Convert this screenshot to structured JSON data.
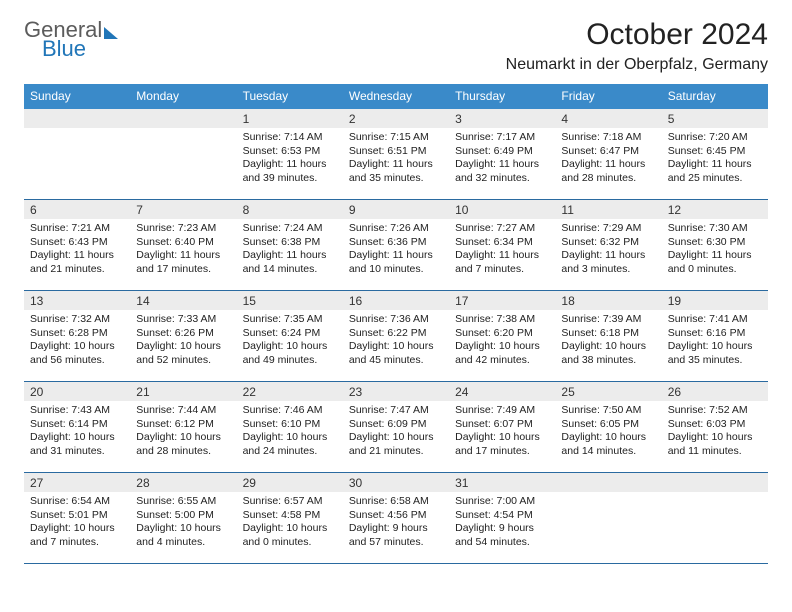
{
  "brand": {
    "line1": "General",
    "line2": "Blue"
  },
  "title": "October 2024",
  "location": "Neumarkt in der Oberpfalz, Germany",
  "colors": {
    "header_bg": "#3a8ac9",
    "header_text": "#ffffff",
    "week_border": "#2a6aa0",
    "daynum_bg": "#ececec",
    "brand_blue": "#2176b8",
    "brand_gray": "#5c5c5c"
  },
  "days_of_week": [
    "Sunday",
    "Monday",
    "Tuesday",
    "Wednesday",
    "Thursday",
    "Friday",
    "Saturday"
  ],
  "weeks": [
    [
      {
        "n": "",
        "sunrise": "",
        "sunset": "",
        "daylight": ""
      },
      {
        "n": "",
        "sunrise": "",
        "sunset": "",
        "daylight": ""
      },
      {
        "n": "1",
        "sunrise": "Sunrise: 7:14 AM",
        "sunset": "Sunset: 6:53 PM",
        "daylight": "Daylight: 11 hours and 39 minutes."
      },
      {
        "n": "2",
        "sunrise": "Sunrise: 7:15 AM",
        "sunset": "Sunset: 6:51 PM",
        "daylight": "Daylight: 11 hours and 35 minutes."
      },
      {
        "n": "3",
        "sunrise": "Sunrise: 7:17 AM",
        "sunset": "Sunset: 6:49 PM",
        "daylight": "Daylight: 11 hours and 32 minutes."
      },
      {
        "n": "4",
        "sunrise": "Sunrise: 7:18 AM",
        "sunset": "Sunset: 6:47 PM",
        "daylight": "Daylight: 11 hours and 28 minutes."
      },
      {
        "n": "5",
        "sunrise": "Sunrise: 7:20 AM",
        "sunset": "Sunset: 6:45 PM",
        "daylight": "Daylight: 11 hours and 25 minutes."
      }
    ],
    [
      {
        "n": "6",
        "sunrise": "Sunrise: 7:21 AM",
        "sunset": "Sunset: 6:43 PM",
        "daylight": "Daylight: 11 hours and 21 minutes."
      },
      {
        "n": "7",
        "sunrise": "Sunrise: 7:23 AM",
        "sunset": "Sunset: 6:40 PM",
        "daylight": "Daylight: 11 hours and 17 minutes."
      },
      {
        "n": "8",
        "sunrise": "Sunrise: 7:24 AM",
        "sunset": "Sunset: 6:38 PM",
        "daylight": "Daylight: 11 hours and 14 minutes."
      },
      {
        "n": "9",
        "sunrise": "Sunrise: 7:26 AM",
        "sunset": "Sunset: 6:36 PM",
        "daylight": "Daylight: 11 hours and 10 minutes."
      },
      {
        "n": "10",
        "sunrise": "Sunrise: 7:27 AM",
        "sunset": "Sunset: 6:34 PM",
        "daylight": "Daylight: 11 hours and 7 minutes."
      },
      {
        "n": "11",
        "sunrise": "Sunrise: 7:29 AM",
        "sunset": "Sunset: 6:32 PM",
        "daylight": "Daylight: 11 hours and 3 minutes."
      },
      {
        "n": "12",
        "sunrise": "Sunrise: 7:30 AM",
        "sunset": "Sunset: 6:30 PM",
        "daylight": "Daylight: 11 hours and 0 minutes."
      }
    ],
    [
      {
        "n": "13",
        "sunrise": "Sunrise: 7:32 AM",
        "sunset": "Sunset: 6:28 PM",
        "daylight": "Daylight: 10 hours and 56 minutes."
      },
      {
        "n": "14",
        "sunrise": "Sunrise: 7:33 AM",
        "sunset": "Sunset: 6:26 PM",
        "daylight": "Daylight: 10 hours and 52 minutes."
      },
      {
        "n": "15",
        "sunrise": "Sunrise: 7:35 AM",
        "sunset": "Sunset: 6:24 PM",
        "daylight": "Daylight: 10 hours and 49 minutes."
      },
      {
        "n": "16",
        "sunrise": "Sunrise: 7:36 AM",
        "sunset": "Sunset: 6:22 PM",
        "daylight": "Daylight: 10 hours and 45 minutes."
      },
      {
        "n": "17",
        "sunrise": "Sunrise: 7:38 AM",
        "sunset": "Sunset: 6:20 PM",
        "daylight": "Daylight: 10 hours and 42 minutes."
      },
      {
        "n": "18",
        "sunrise": "Sunrise: 7:39 AM",
        "sunset": "Sunset: 6:18 PM",
        "daylight": "Daylight: 10 hours and 38 minutes."
      },
      {
        "n": "19",
        "sunrise": "Sunrise: 7:41 AM",
        "sunset": "Sunset: 6:16 PM",
        "daylight": "Daylight: 10 hours and 35 minutes."
      }
    ],
    [
      {
        "n": "20",
        "sunrise": "Sunrise: 7:43 AM",
        "sunset": "Sunset: 6:14 PM",
        "daylight": "Daylight: 10 hours and 31 minutes."
      },
      {
        "n": "21",
        "sunrise": "Sunrise: 7:44 AM",
        "sunset": "Sunset: 6:12 PM",
        "daylight": "Daylight: 10 hours and 28 minutes."
      },
      {
        "n": "22",
        "sunrise": "Sunrise: 7:46 AM",
        "sunset": "Sunset: 6:10 PM",
        "daylight": "Daylight: 10 hours and 24 minutes."
      },
      {
        "n": "23",
        "sunrise": "Sunrise: 7:47 AM",
        "sunset": "Sunset: 6:09 PM",
        "daylight": "Daylight: 10 hours and 21 minutes."
      },
      {
        "n": "24",
        "sunrise": "Sunrise: 7:49 AM",
        "sunset": "Sunset: 6:07 PM",
        "daylight": "Daylight: 10 hours and 17 minutes."
      },
      {
        "n": "25",
        "sunrise": "Sunrise: 7:50 AM",
        "sunset": "Sunset: 6:05 PM",
        "daylight": "Daylight: 10 hours and 14 minutes."
      },
      {
        "n": "26",
        "sunrise": "Sunrise: 7:52 AM",
        "sunset": "Sunset: 6:03 PM",
        "daylight": "Daylight: 10 hours and 11 minutes."
      }
    ],
    [
      {
        "n": "27",
        "sunrise": "Sunrise: 6:54 AM",
        "sunset": "Sunset: 5:01 PM",
        "daylight": "Daylight: 10 hours and 7 minutes."
      },
      {
        "n": "28",
        "sunrise": "Sunrise: 6:55 AM",
        "sunset": "Sunset: 5:00 PM",
        "daylight": "Daylight: 10 hours and 4 minutes."
      },
      {
        "n": "29",
        "sunrise": "Sunrise: 6:57 AM",
        "sunset": "Sunset: 4:58 PM",
        "daylight": "Daylight: 10 hours and 0 minutes."
      },
      {
        "n": "30",
        "sunrise": "Sunrise: 6:58 AM",
        "sunset": "Sunset: 4:56 PM",
        "daylight": "Daylight: 9 hours and 57 minutes."
      },
      {
        "n": "31",
        "sunrise": "Sunrise: 7:00 AM",
        "sunset": "Sunset: 4:54 PM",
        "daylight": "Daylight: 9 hours and 54 minutes."
      },
      {
        "n": "",
        "sunrise": "",
        "sunset": "",
        "daylight": ""
      },
      {
        "n": "",
        "sunrise": "",
        "sunset": "",
        "daylight": ""
      }
    ]
  ]
}
